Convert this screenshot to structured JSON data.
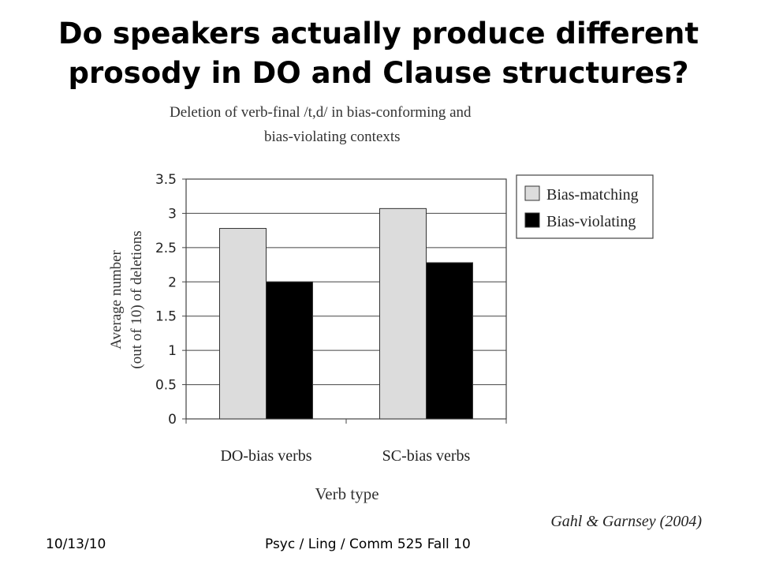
{
  "slide": {
    "title_line1": "Do speakers actually produce different",
    "title_line2": "prosody in DO and Clause structures?",
    "citation": "Gahl & Garnsey (2004)",
    "footer_date": "10/13/10",
    "footer_course": "Psyc / Ling / Comm 525 Fall 10"
  },
  "chart_data": {
    "type": "bar",
    "title_line1": "Deletion of verb-final /t,d/ in bias-conforming and",
    "title_line2": "bias-violating contexts",
    "categories": [
      "DO-bias verbs",
      "SC-bias verbs"
    ],
    "series": [
      {
        "name": "Bias-matching",
        "values": [
          2.78,
          3.07
        ],
        "color": "#dcdcdc"
      },
      {
        "name": "Bias-violating",
        "values": [
          2.0,
          2.28
        ],
        "color": "#000000"
      }
    ],
    "xlabel": "Verb type",
    "ylabel_line1": "Average number",
    "ylabel_line2": "(out of 10) of deletions",
    "ylim": [
      0,
      3.5
    ],
    "yticks": [
      "0",
      "0.5",
      "1",
      "1.5",
      "2",
      "2.5",
      "3",
      "3.5"
    ],
    "grid": true,
    "legend_position": "right"
  }
}
